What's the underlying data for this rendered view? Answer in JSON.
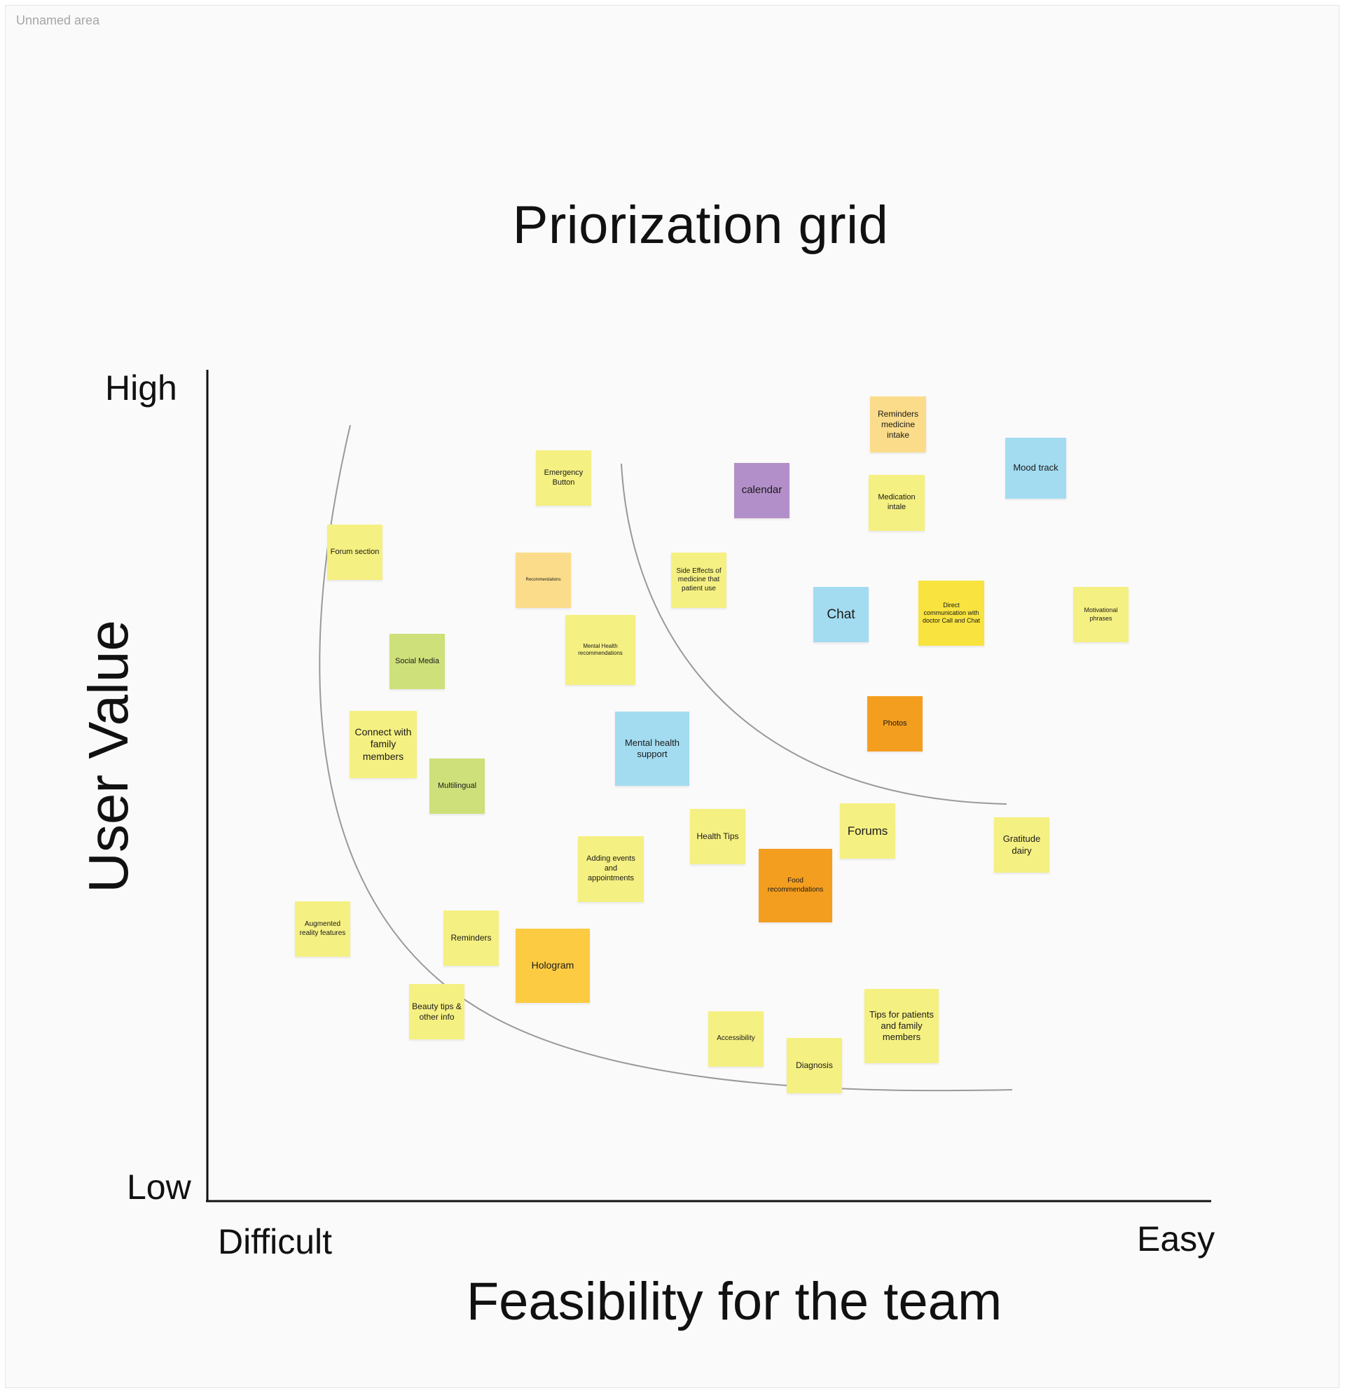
{
  "area_label": "Unnamed area",
  "title": "Priorization grid",
  "axes": {
    "y_label": "User Value",
    "y_high": "High",
    "y_low": "Low",
    "x_label": "Feasibility for the team",
    "x_low": "Difficult",
    "x_high": "Easy"
  },
  "colors": {
    "yellow": "#f5f082",
    "light_orange": "#fbdc8a",
    "purple": "#b28fc8",
    "blue": "#a3dcf1",
    "green": "#cde07a",
    "bright_yellow": "#f8e33f",
    "orange": "#f49e1f",
    "gold": "#fdcb42"
  },
  "notes": {
    "reminders_medicine": {
      "text": "Reminders medicine intake",
      "color": "light_orange"
    },
    "mood_track": {
      "text": "Mood track",
      "color": "blue"
    },
    "emergency_button": {
      "text": "Emergency Button",
      "color": "yellow"
    },
    "calendar": {
      "text": "calendar",
      "color": "purple"
    },
    "medication_intake": {
      "text": "Medication intale",
      "color": "yellow"
    },
    "forum_section": {
      "text": "Forum section",
      "color": "yellow"
    },
    "recommendations": {
      "text": "Recommendations",
      "color": "light_orange"
    },
    "side_effects": {
      "text": "Side Effects of medicine that patient use",
      "color": "yellow"
    },
    "chat": {
      "text": "Chat",
      "color": "blue"
    },
    "direct_communication": {
      "text": "Direct communication with doctor Call and Chat",
      "color": "bright_yellow"
    },
    "motivational_phrases": {
      "text": "Motivational phrases",
      "color": "yellow"
    },
    "social_media": {
      "text": "Social Media",
      "color": "green"
    },
    "mental_health_recommendations": {
      "text": "Mental Health recommendations",
      "color": "yellow"
    },
    "photos": {
      "text": "Photos",
      "color": "orange"
    },
    "connect_family": {
      "text": "Connect with family members",
      "color": "yellow"
    },
    "mental_health_support": {
      "text": "Mental health support",
      "color": "blue"
    },
    "multilingual": {
      "text": "Multilingual",
      "color": "green"
    },
    "health_tips": {
      "text": "Health Tips",
      "color": "yellow"
    },
    "forums": {
      "text": "Forums",
      "color": "yellow"
    },
    "gratitude_dairy": {
      "text": "Gratitude dairy",
      "color": "yellow"
    },
    "adding_events": {
      "text": "Adding events and appointments",
      "color": "yellow"
    },
    "food_recommendations": {
      "text": "Food recommendations",
      "color": "orange"
    },
    "augmented_reality": {
      "text": "Augmented reality features",
      "color": "yellow"
    },
    "reminders": {
      "text": "Reminders",
      "color": "yellow"
    },
    "hologram": {
      "text": "Hologram",
      "color": "gold"
    },
    "beauty_tips": {
      "text": "Beauty tips & other info",
      "color": "yellow"
    },
    "tips_patients": {
      "text": "Tips for patients and family members",
      "color": "yellow"
    },
    "accessibility": {
      "text": "Accessibility",
      "color": "yellow"
    },
    "diagnosis": {
      "text": "Diagnosis",
      "color": "yellow"
    }
  }
}
